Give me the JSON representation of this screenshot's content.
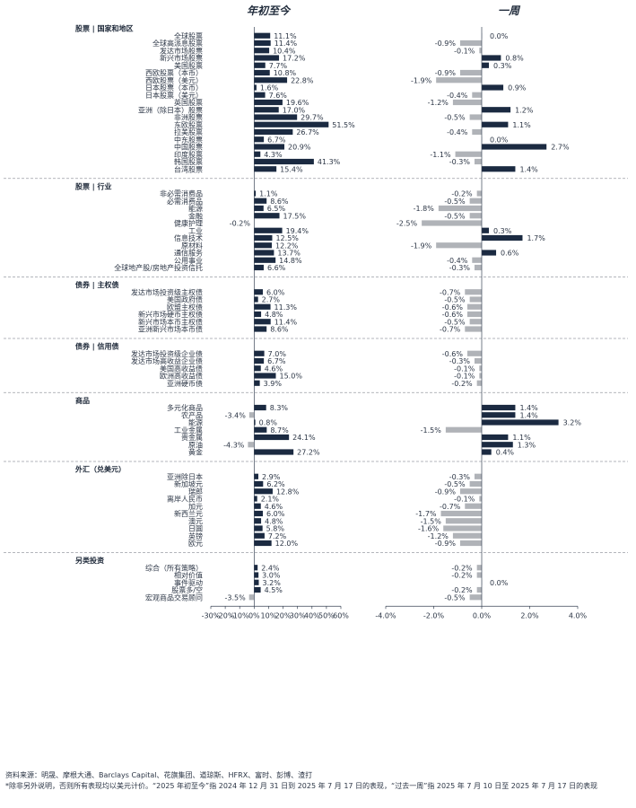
{
  "headers": {
    "ytd": "年初至今",
    "week": "一周"
  },
  "colors": {
    "positive": "#1b2a41",
    "negative": "#b0b3b8",
    "separator": "#9a9ea5",
    "text": "#2b3545"
  },
  "footer": {
    "source": "资料来源：明晟、摩根大通、Barclays Capital、花旗集团、道琼斯、HFRX、富时、彭博、渣打",
    "note": "*除非另外说明，否则所有表现均以美元计价。“2025 年初至今”指 2024 年 12 月 31 日到 2025 年 7 月 17 日的表现，“过去一周”指 2025 年 7 月 10 日至 2025 年 7 月 17 日的表现"
  },
  "chart_data": [
    {
      "type": "bar",
      "orientation": "horizontal",
      "title": "年初至今",
      "xlim": [
        -30,
        60
      ],
      "x_ticks": [
        "-30%",
        "-20%",
        "-10%",
        "0%",
        "10%",
        "20%",
        "30%",
        "40%",
        "50%",
        "60%"
      ],
      "unit": "%",
      "sections": [
        {
          "title": "股票 | 国家和地区",
          "items": [
            {
              "label": "全球股票",
              "value": 11.1
            },
            {
              "label": "全球高派息股票",
              "value": 11.4
            },
            {
              "label": "发达市场股票",
              "value": 10.4
            },
            {
              "label": "新兴市场股票",
              "value": 17.2
            },
            {
              "label": "美国股票",
              "value": 7.7
            },
            {
              "label": "西欧股票（本币）",
              "value": 10.8
            },
            {
              "label": "西欧股票（美元）",
              "value": 22.8
            },
            {
              "label": "日本股票（本币）",
              "value": 1.6
            },
            {
              "label": "日本股票（美元）",
              "value": 7.6
            },
            {
              "label": "英国股票",
              "value": 19.6
            },
            {
              "label": "亚洲（除日本）股票",
              "value": 17.0
            },
            {
              "label": "非洲股票",
              "value": 29.7
            },
            {
              "label": "东欧股票",
              "value": 51.5
            },
            {
              "label": "拉美股票",
              "value": 26.7
            },
            {
              "label": "中东股票",
              "value": 6.7
            },
            {
              "label": "中国股票",
              "value": 20.9
            },
            {
              "label": "印度股票",
              "value": 4.3
            },
            {
              "label": "韩国股票",
              "value": 41.3
            },
            {
              "label": "台湾股票",
              "value": 15.4
            }
          ]
        },
        {
          "title": "股票 | 行业",
          "items": [
            {
              "label": "非必需消费品",
              "value": 1.1
            },
            {
              "label": "必需消费品",
              "value": 8.6
            },
            {
              "label": "能源",
              "value": 6.5
            },
            {
              "label": "金融",
              "value": 17.5
            },
            {
              "label": "健康护理",
              "value": -0.2
            },
            {
              "label": "工业",
              "value": 19.4
            },
            {
              "label": "信息技术",
              "value": 12.5
            },
            {
              "label": "原材料",
              "value": 12.2
            },
            {
              "label": "通信服务",
              "value": 13.7
            },
            {
              "label": "公用事业",
              "value": 14.8
            },
            {
              "label": "全球地产股/房地产投资信托",
              "value": 6.6
            }
          ]
        },
        {
          "title": "债券 | 主权债",
          "items": [
            {
              "label": "发达市场投资级主权债",
              "value": 6.0
            },
            {
              "label": "美国政府债",
              "value": 2.7
            },
            {
              "label": "欧盟主权债",
              "value": 11.3
            },
            {
              "label": "新兴市场硬币主权债",
              "value": 4.8
            },
            {
              "label": "新兴市场本币主权债",
              "value": 11.4
            },
            {
              "label": "亚洲新兴市场本币债",
              "value": 8.6
            }
          ]
        },
        {
          "title": "债券 | 信用债",
          "items": [
            {
              "label": "发达市场投资级企业债",
              "value": 7.0
            },
            {
              "label": "发达市场高收益企业债",
              "value": 6.7
            },
            {
              "label": "美国高收益债",
              "value": 4.6
            },
            {
              "label": "欧洲高收益债",
              "value": 15.0
            },
            {
              "label": "亚洲硬币债",
              "value": 3.9
            }
          ]
        },
        {
          "title": "商品",
          "items": [
            {
              "label": "多元化商品",
              "value": 8.3
            },
            {
              "label": "农产品",
              "value": -3.4
            },
            {
              "label": "能源",
              "value": 0.8
            },
            {
              "label": "工业金属",
              "value": 8.7
            },
            {
              "label": "贵金属",
              "value": 24.1
            },
            {
              "label": "原油",
              "value": -4.3
            },
            {
              "label": "黄金",
              "value": 27.2
            }
          ]
        },
        {
          "title": "外汇（兑美元）",
          "items": [
            {
              "label": "亚洲除日本",
              "value": 2.9
            },
            {
              "label": "新加坡元",
              "value": 6.2
            },
            {
              "label": "瑞郎",
              "value": 12.8
            },
            {
              "label": "离岸人民币",
              "value": 2.1
            },
            {
              "label": "加元",
              "value": 4.6
            },
            {
              "label": "新西兰元",
              "value": 6.0
            },
            {
              "label": "澳元",
              "value": 4.8
            },
            {
              "label": "日圆",
              "value": 5.8
            },
            {
              "label": "英镑",
              "value": 7.2
            },
            {
              "label": "欧元",
              "value": 12.0
            }
          ]
        },
        {
          "title": "另类投资",
          "items": [
            {
              "label": "综合（所有策略）",
              "value": 2.4
            },
            {
              "label": "相对价值",
              "value": 3.0
            },
            {
              "label": "事件驱动",
              "value": 3.2
            },
            {
              "label": "股票多/空",
              "value": 4.5
            },
            {
              "label": "宏观商品交易顾问",
              "value": -3.5
            }
          ]
        }
      ]
    },
    {
      "type": "bar",
      "orientation": "horizontal",
      "title": "一周",
      "xlim": [
        -4,
        4
      ],
      "x_ticks": [
        "-4.0%",
        "-2.0%",
        "0.0%",
        "2.0%",
        "4.0%"
      ],
      "unit": "%",
      "sections": [
        {
          "title": "股票 | 国家和地区",
          "values": [
            0.0,
            -0.9,
            -0.1,
            0.8,
            0.3,
            -0.9,
            -1.9,
            0.9,
            -0.4,
            -1.2,
            1.2,
            -0.5,
            1.1,
            -0.4,
            0.0,
            2.7,
            -1.1,
            -0.3,
            1.4
          ]
        },
        {
          "title": "股票 | 行业",
          "values": [
            -0.2,
            -0.5,
            -1.8,
            -0.5,
            -2.5,
            0.3,
            1.7,
            -1.9,
            0.6,
            -0.4,
            -0.3
          ]
        },
        {
          "title": "债券 | 主权债",
          "values": [
            -0.7,
            -0.5,
            -0.6,
            -0.6,
            -0.5,
            -0.7
          ]
        },
        {
          "title": "债券 | 信用债",
          "values": [
            -0.6,
            -0.3,
            -0.1,
            -0.1,
            -0.2
          ]
        },
        {
          "title": "商品",
          "values": [
            1.4,
            1.4,
            3.2,
            -1.5,
            1.1,
            1.3,
            0.4
          ]
        },
        {
          "title": "外汇（兑美元）",
          "values": [
            -0.3,
            -0.5,
            -0.9,
            -0.1,
            -0.7,
            -1.7,
            -1.5,
            -1.6,
            -1.2,
            -0.9
          ]
        },
        {
          "title": "另类投资",
          "values": [
            -0.2,
            -0.2,
            0.0,
            -0.2,
            -0.5
          ]
        }
      ]
    }
  ]
}
